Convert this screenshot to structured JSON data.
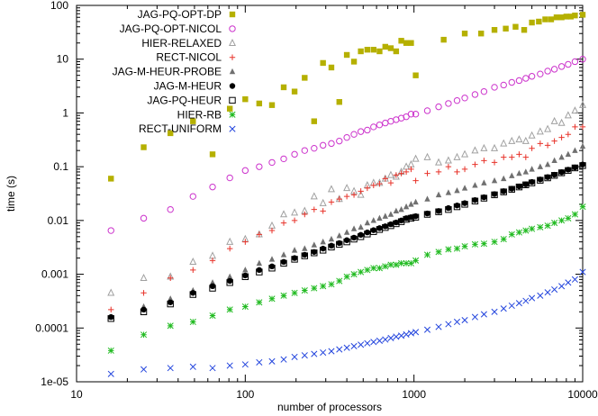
{
  "chart_data": {
    "type": "scatter",
    "title": "",
    "xlabel": "number of processors",
    "ylabel": "time (s)",
    "xscale": "log",
    "yscale": "log",
    "xlim": [
      10,
      10000
    ],
    "ylim": [
      1e-05,
      100
    ],
    "x_ticks": [
      10,
      100,
      1000,
      10000
    ],
    "x_tick_labels": [
      "10",
      "100",
      "1000",
      "10000"
    ],
    "y_ticks": [
      1e-05,
      0.0001,
      0.001,
      0.01,
      0.1,
      1,
      10,
      100
    ],
    "y_tick_labels": [
      "1e-05",
      "0.0001",
      "0.001",
      "0.01",
      "0.1",
      "1",
      "10",
      "100"
    ],
    "grid": false,
    "legend_position": "top-left",
    "series": [
      {
        "name": "JAG-PQ-OPT-DP",
        "marker": "square-filled",
        "color": "#b5b000",
        "x": [
          16,
          25,
          36,
          49,
          64,
          81,
          100,
          121,
          144,
          169,
          196,
          225,
          256,
          289,
          324,
          361,
          400,
          441,
          484,
          529,
          576,
          625,
          676,
          729,
          784,
          841,
          900,
          961,
          1024,
          1500,
          2000,
          2500,
          3000,
          3500,
          4000,
          4500,
          5000,
          5500,
          6000,
          6500,
          7000,
          7500,
          8000,
          8500,
          9000,
          10000
        ],
        "y": [
          0.06,
          0.23,
          0.42,
          0.7,
          0.17,
          1.2,
          1.8,
          1.5,
          1.4,
          3.0,
          2.5,
          4.5,
          0.7,
          8.5,
          7.0,
          1.6,
          12,
          9,
          14,
          15,
          15,
          14,
          17,
          16,
          14,
          22,
          20,
          20,
          5,
          23,
          30,
          30,
          35,
          37,
          40,
          35,
          48,
          50,
          55,
          55,
          60,
          60,
          62,
          62,
          65,
          67
        ]
      },
      {
        "name": "JAG-PQ-OPT-NICOL",
        "marker": "circle-open",
        "color": "#cc33cc",
        "x": [
          16,
          25,
          36,
          49,
          64,
          81,
          100,
          121,
          144,
          169,
          196,
          225,
          256,
          289,
          324,
          361,
          400,
          441,
          484,
          529,
          576,
          625,
          676,
          729,
          784,
          841,
          900,
          961,
          1024,
          1200,
          1400,
          1600,
          1800,
          2000,
          2300,
          2600,
          3000,
          3400,
          3800,
          4200,
          4600,
          5000,
          5600,
          6200,
          6800,
          7500,
          8200,
          9000,
          10000
        ],
        "y": [
          0.0065,
          0.011,
          0.016,
          0.028,
          0.042,
          0.062,
          0.085,
          0.1,
          0.12,
          0.14,
          0.17,
          0.2,
          0.22,
          0.25,
          0.27,
          0.3,
          0.35,
          0.4,
          0.45,
          0.48,
          0.55,
          0.6,
          0.65,
          0.7,
          0.75,
          0.8,
          0.85,
          0.95,
          0.95,
          1.1,
          1.3,
          1.5,
          1.7,
          1.9,
          2.2,
          2.5,
          3.0,
          3.3,
          3.7,
          4.0,
          4.4,
          4.8,
          5.3,
          6.0,
          6.5,
          7.3,
          8.0,
          9.0,
          10
        ]
      },
      {
        "name": "HIER-RELAXED",
        "marker": "triangle-open",
        "color": "#a0a0a0",
        "x": [
          16,
          25,
          36,
          49,
          64,
          81,
          100,
          121,
          144,
          169,
          196,
          225,
          256,
          289,
          324,
          361,
          400,
          441,
          484,
          529,
          576,
          625,
          676,
          729,
          784,
          841,
          900,
          961,
          1024,
          1200,
          1400,
          1600,
          1800,
          2000,
          2300,
          2600,
          3000,
          3400,
          3800,
          4200,
          4600,
          5000,
          5600,
          6200,
          6800,
          7500,
          8200,
          9000,
          10000
        ],
        "y": [
          0.00045,
          0.00085,
          0.0009,
          0.0017,
          0.0022,
          0.004,
          0.0045,
          0.0055,
          0.008,
          0.013,
          0.014,
          0.015,
          0.028,
          0.021,
          0.038,
          0.025,
          0.04,
          0.035,
          0.03,
          0.045,
          0.05,
          0.05,
          0.06,
          0.07,
          0.065,
          0.08,
          0.1,
          0.11,
          0.14,
          0.15,
          0.12,
          0.13,
          0.15,
          0.17,
          0.2,
          0.22,
          0.22,
          0.27,
          0.3,
          0.32,
          0.3,
          0.38,
          0.45,
          0.5,
          0.7,
          0.65,
          0.9,
          1.1,
          1.4
        ]
      },
      {
        "name": "RECT-NICOL",
        "marker": "plus",
        "color": "#e8332a",
        "x": [
          16,
          25,
          36,
          49,
          64,
          81,
          100,
          121,
          144,
          169,
          196,
          225,
          256,
          289,
          324,
          361,
          400,
          441,
          484,
          529,
          576,
          625,
          676,
          729,
          784,
          841,
          900,
          961,
          1024,
          1200,
          1400,
          1600,
          1800,
          2000,
          2300,
          2600,
          3000,
          3400,
          3800,
          4200,
          4600,
          5000,
          5600,
          6200,
          6800,
          7500,
          8200,
          9000,
          10000
        ],
        "y": [
          0.00022,
          0.00045,
          0.00085,
          0.0012,
          0.0018,
          0.003,
          0.004,
          0.0055,
          0.0065,
          0.009,
          0.01,
          0.013,
          0.016,
          0.015,
          0.022,
          0.025,
          0.028,
          0.03,
          0.035,
          0.04,
          0.045,
          0.048,
          0.06,
          0.05,
          0.07,
          0.075,
          0.08,
          0.09,
          0.055,
          0.075,
          0.08,
          0.1,
          0.08,
          0.09,
          0.11,
          0.13,
          0.12,
          0.15,
          0.15,
          0.17,
          0.15,
          0.22,
          0.27,
          0.25,
          0.3,
          0.35,
          0.4,
          0.55,
          0.55
        ]
      },
      {
        "name": "JAG-M-HEUR-PROBE",
        "marker": "triangle-filled",
        "color": "#707070",
        "x": [
          16,
          25,
          36,
          49,
          64,
          81,
          100,
          121,
          144,
          169,
          196,
          225,
          256,
          289,
          324,
          361,
          400,
          441,
          484,
          529,
          576,
          625,
          676,
          729,
          784,
          841,
          900,
          961,
          1024,
          1200,
          1400,
          1600,
          1800,
          2000,
          2300,
          2600,
          3000,
          3400,
          3800,
          4200,
          4600,
          5000,
          5600,
          6200,
          6800,
          7500,
          8200,
          9000,
          10000
        ],
        "y": [
          0.00016,
          0.00025,
          0.00035,
          0.0005,
          0.0007,
          0.0009,
          0.0012,
          0.0016,
          0.0019,
          0.0023,
          0.0028,
          0.003,
          0.0035,
          0.004,
          0.0045,
          0.0052,
          0.006,
          0.007,
          0.0075,
          0.009,
          0.01,
          0.011,
          0.012,
          0.013,
          0.015,
          0.016,
          0.018,
          0.02,
          0.022,
          0.025,
          0.03,
          0.033,
          0.036,
          0.04,
          0.045,
          0.05,
          0.055,
          0.06,
          0.068,
          0.075,
          0.08,
          0.09,
          0.1,
          0.11,
          0.13,
          0.15,
          0.17,
          0.2,
          0.24
        ]
      },
      {
        "name": "JAG-M-HEUR",
        "marker": "circle-filled",
        "color": "#000000",
        "x": [
          16,
          25,
          36,
          49,
          64,
          81,
          100,
          121,
          144,
          169,
          196,
          225,
          256,
          289,
          324,
          361,
          400,
          441,
          484,
          529,
          576,
          625,
          676,
          729,
          784,
          841,
          900,
          961,
          1024,
          1200,
          1400,
          1600,
          1800,
          2000,
          2300,
          2600,
          3000,
          3400,
          3800,
          4200,
          4600,
          5000,
          5600,
          6200,
          6800,
          7500,
          8200,
          9000,
          10000
        ],
        "y": [
          0.00016,
          0.00022,
          0.0003,
          0.00045,
          0.0006,
          0.00075,
          0.00095,
          0.0012,
          0.0014,
          0.0017,
          0.002,
          0.0023,
          0.0026,
          0.003,
          0.0034,
          0.0038,
          0.0043,
          0.0048,
          0.0054,
          0.006,
          0.0066,
          0.0072,
          0.0078,
          0.0085,
          0.0092,
          0.01,
          0.011,
          0.0115,
          0.012,
          0.0135,
          0.015,
          0.017,
          0.019,
          0.021,
          0.024,
          0.027,
          0.031,
          0.035,
          0.039,
          0.043,
          0.047,
          0.052,
          0.058,
          0.064,
          0.071,
          0.079,
          0.088,
          0.097,
          0.11
        ]
      },
      {
        "name": "JAG-PQ-HEUR",
        "marker": "square-open",
        "color": "#000000",
        "x": [
          16,
          25,
          36,
          49,
          64,
          81,
          100,
          121,
          144,
          169,
          196,
          225,
          256,
          289,
          324,
          361,
          400,
          441,
          484,
          529,
          576,
          625,
          676,
          729,
          784,
          841,
          900,
          961,
          1024,
          1200,
          1400,
          1600,
          1800,
          2000,
          2300,
          2600,
          3000,
          3400,
          3800,
          4200,
          4600,
          5000,
          5600,
          6200,
          6800,
          7500,
          8200,
          9000,
          10000
        ],
        "y": [
          0.00015,
          0.0002,
          0.00028,
          0.00042,
          0.00055,
          0.0007,
          0.0009,
          0.0011,
          0.0013,
          0.0016,
          0.0019,
          0.0022,
          0.0025,
          0.0028,
          0.0032,
          0.0036,
          0.004,
          0.0045,
          0.005,
          0.0056,
          0.0062,
          0.0068,
          0.0074,
          0.008,
          0.0087,
          0.0095,
          0.0105,
          0.011,
          0.0115,
          0.013,
          0.0145,
          0.016,
          0.018,
          0.02,
          0.023,
          0.026,
          0.03,
          0.034,
          0.038,
          0.042,
          0.046,
          0.05,
          0.056,
          0.062,
          0.069,
          0.077,
          0.085,
          0.095,
          0.105
        ]
      },
      {
        "name": "HIER-RB",
        "marker": "star",
        "color": "#22bb22",
        "x": [
          16,
          25,
          36,
          49,
          64,
          81,
          100,
          121,
          144,
          169,
          196,
          225,
          256,
          289,
          324,
          361,
          400,
          441,
          484,
          529,
          576,
          625,
          676,
          729,
          784,
          841,
          900,
          961,
          1024,
          1200,
          1400,
          1600,
          1800,
          2000,
          2300,
          2600,
          3000,
          3400,
          3800,
          4200,
          4600,
          5000,
          5600,
          6200,
          6800,
          7500,
          8200,
          9000,
          10000
        ],
        "y": [
          3.8e-05,
          7.5e-05,
          0.00011,
          0.00013,
          0.00017,
          0.00022,
          0.00025,
          0.0003,
          0.00035,
          0.0004,
          0.00045,
          0.0005,
          0.00055,
          0.0006,
          0.00065,
          0.00075,
          0.0009,
          0.001,
          0.0011,
          0.0012,
          0.0013,
          0.0013,
          0.0014,
          0.0015,
          0.0015,
          0.0016,
          0.0016,
          0.0016,
          0.0018,
          0.0023,
          0.0026,
          0.0029,
          0.003,
          0.0033,
          0.0036,
          0.0037,
          0.004,
          0.0045,
          0.0055,
          0.006,
          0.0065,
          0.007,
          0.0075,
          0.008,
          0.009,
          0.01,
          0.011,
          0.013,
          0.018
        ]
      },
      {
        "name": "RECT-UNIFORM",
        "marker": "x",
        "color": "#2244dd",
        "x": [
          16,
          25,
          36,
          49,
          64,
          81,
          100,
          121,
          144,
          169,
          196,
          225,
          256,
          289,
          324,
          361,
          400,
          441,
          484,
          529,
          576,
          625,
          676,
          729,
          784,
          841,
          900,
          961,
          1024,
          1200,
          1400,
          1600,
          1800,
          2000,
          2300,
          2600,
          3000,
          3400,
          3800,
          4200,
          4600,
          5000,
          5600,
          6200,
          6800,
          7500,
          8200,
          9000,
          10000
        ],
        "y": [
          1.4e-05,
          1.7e-05,
          1.8e-05,
          1.9e-05,
          1.8e-05,
          2e-05,
          2.1e-05,
          2.3e-05,
          2.4e-05,
          2.6e-05,
          2.9e-05,
          3.1e-05,
          3.3e-05,
          3.5e-05,
          3.7e-05,
          4e-05,
          4.3e-05,
          4.6e-05,
          4.9e-05,
          5.2e-05,
          5.5e-05,
          5.8e-05,
          6.1e-05,
          6.5e-05,
          6.9e-05,
          7.2e-05,
          7.6e-05,
          8e-05,
          8.4e-05,
          9.3e-05,
          0.000105,
          0.000118,
          0.00013,
          0.00014,
          0.00016,
          0.00018,
          0.0002,
          0.00023,
          0.00026,
          0.00029,
          0.00032,
          0.00036,
          0.0004,
          0.00046,
          0.00052,
          0.0006,
          0.0007,
          0.0008,
          0.0011
        ]
      }
    ]
  }
}
